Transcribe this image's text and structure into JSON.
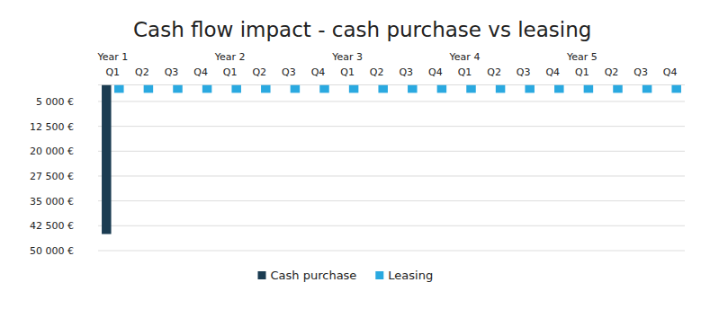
{
  "chart_data": {
    "type": "bar",
    "title": "Cash flow impact - cash purchase vs leasing",
    "categories": [
      "Q1",
      "Q2",
      "Q3",
      "Q4",
      "Q1",
      "Q2",
      "Q3",
      "Q4",
      "Q1",
      "Q2",
      "Q3",
      "Q4",
      "Q1",
      "Q2",
      "Q3",
      "Q4",
      "Q1",
      "Q2",
      "Q3",
      "Q4"
    ],
    "annotations": [
      {
        "text": "Year 1",
        "index": 0
      },
      {
        "text": "Year 2",
        "index": 4
      },
      {
        "text": "Year 3",
        "index": 8
      },
      {
        "text": "Year 4",
        "index": 12
      },
      {
        "text": "Year 5",
        "index": 16
      }
    ],
    "series": [
      {
        "name": "Cash purchase",
        "color": "#1b3c52",
        "values": [
          45000,
          0,
          0,
          0,
          0,
          0,
          0,
          0,
          0,
          0,
          0,
          0,
          0,
          0,
          0,
          0,
          0,
          0,
          0,
          0
        ]
      },
      {
        "name": "Leasing",
        "color": "#2aa9e0",
        "values": [
          2400,
          2400,
          2400,
          2400,
          2400,
          2400,
          2400,
          2400,
          2400,
          2400,
          2400,
          2400,
          2400,
          2400,
          2400,
          2400,
          2400,
          2400,
          2400,
          2400
        ]
      }
    ],
    "ylim": [
      0,
      50000
    ],
    "yticks": [
      {
        "value": 5000,
        "label": "5 000 €"
      },
      {
        "value": 12500,
        "label": "12 500 €"
      },
      {
        "value": 20000,
        "label": "20 000 €"
      },
      {
        "value": 27500,
        "label": "27 500 €"
      },
      {
        "value": 35000,
        "label": "35 000 €"
      },
      {
        "value": 42500,
        "label": "42 500 €"
      },
      {
        "value": 50000,
        "label": "50 000 €"
      }
    ],
    "grid": true,
    "legend": "bottom"
  }
}
